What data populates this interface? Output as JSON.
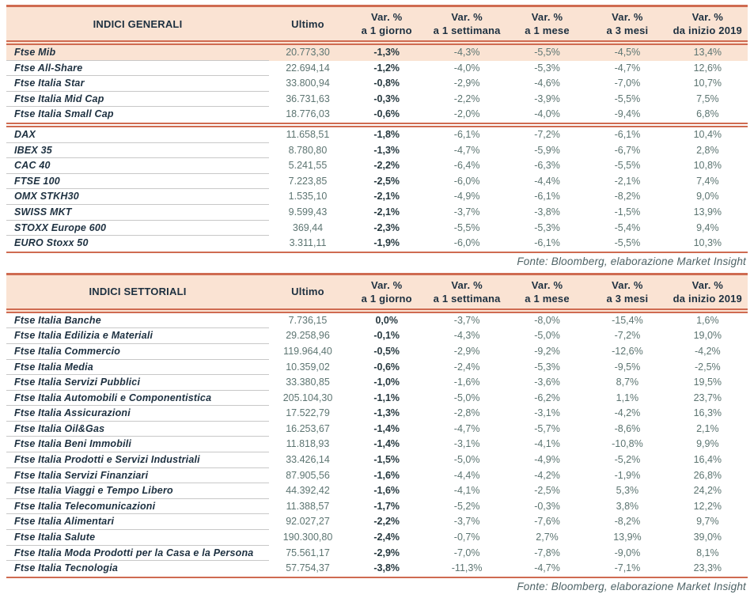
{
  "source_note": "Fonte: Bloomberg, elaborazione Market Insight",
  "columns": {
    "ultimo": "Ultimo",
    "var_label": "Var. %",
    "periods": [
      "a 1 giorno",
      "a 1 settimana",
      "a 1 mese",
      "a 3 mesi",
      "da inizio 2019"
    ]
  },
  "colors": {
    "accent_line": "#cf6b51",
    "header_bg": "#fae3d3",
    "dark_text": "#1d3040",
    "value_text": "#5d7572"
  },
  "tables": [
    {
      "title": "INDICI GENERALI",
      "groups": [
        {
          "rows": [
            {
              "name": "Ftse Mib",
              "ultimo": "20.773,30",
              "values": [
                "-1,3%",
                "-4,3%",
                "-5,5%",
                "-4,5%",
                "13,4%"
              ],
              "highlight": true
            },
            {
              "name": "Ftse All-Share",
              "ultimo": "22.694,14",
              "values": [
                "-1,2%",
                "-4,0%",
                "-5,3%",
                "-4,7%",
                "12,6%"
              ]
            },
            {
              "name": "Ftse Italia Star",
              "ultimo": "33.800,94",
              "values": [
                "-0,8%",
                "-2,9%",
                "-4,6%",
                "-7,0%",
                "10,7%"
              ]
            },
            {
              "name": "Ftse Italia Mid Cap",
              "ultimo": "36.731,63",
              "values": [
                "-0,3%",
                "-2,2%",
                "-3,9%",
                "-5,5%",
                "7,5%"
              ]
            },
            {
              "name": "Ftse Italia Small Cap",
              "ultimo": "18.776,03",
              "values": [
                "-0,6%",
                "-2,0%",
                "-4,0%",
                "-9,4%",
                "6,8%"
              ]
            }
          ]
        },
        {
          "rows": [
            {
              "name": "DAX",
              "ultimo": "11.658,51",
              "values": [
                "-1,8%",
                "-6,1%",
                "-7,2%",
                "-6,1%",
                "10,4%"
              ]
            },
            {
              "name": "IBEX 35",
              "ultimo": "8.780,80",
              "values": [
                "-1,3%",
                "-4,7%",
                "-5,9%",
                "-6,7%",
                "2,8%"
              ]
            },
            {
              "name": "CAC 40",
              "ultimo": "5.241,55",
              "values": [
                "-2,2%",
                "-6,4%",
                "-6,3%",
                "-5,5%",
                "10,8%"
              ]
            },
            {
              "name": "FTSE 100",
              "ultimo": "7.223,85",
              "values": [
                "-2,5%",
                "-6,0%",
                "-4,4%",
                "-2,1%",
                "7,4%"
              ]
            },
            {
              "name": "OMX STKH30",
              "ultimo": "1.535,10",
              "values": [
                "-2,1%",
                "-4,9%",
                "-6,1%",
                "-8,2%",
                "9,0%"
              ]
            },
            {
              "name": "SWISS MKT",
              "ultimo": "9.599,43",
              "values": [
                "-2,1%",
                "-3,7%",
                "-3,8%",
                "-1,5%",
                "13,9%"
              ]
            },
            {
              "name": "STOXX Europe 600",
              "ultimo": "369,44",
              "values": [
                "-2,3%",
                "-5,5%",
                "-5,3%",
                "-5,4%",
                "9,4%"
              ]
            },
            {
              "name": "EURO Stoxx 50",
              "ultimo": "3.311,11",
              "values": [
                "-1,9%",
                "-6,0%",
                "-6,1%",
                "-5,5%",
                "10,3%"
              ]
            }
          ]
        }
      ]
    },
    {
      "title": "INDICI SETTORIALI",
      "groups": [
        {
          "rows": [
            {
              "name": "Ftse Italia Banche",
              "ultimo": "7.736,15",
              "values": [
                "0,0%",
                "-3,7%",
                "-8,0%",
                "-15,4%",
                "1,6%"
              ]
            },
            {
              "name": "Ftse Italia Edilizia e Materiali",
              "ultimo": "29.258,96",
              "values": [
                "-0,1%",
                "-4,3%",
                "-5,0%",
                "-7,2%",
                "19,0%"
              ]
            },
            {
              "name": "Ftse Italia Commercio",
              "ultimo": "119.964,40",
              "values": [
                "-0,5%",
                "-2,9%",
                "-9,2%",
                "-12,6%",
                "-4,2%"
              ]
            },
            {
              "name": "Ftse Italia Media",
              "ultimo": "10.359,02",
              "values": [
                "-0,6%",
                "-2,4%",
                "-5,3%",
                "-9,5%",
                "-2,5%"
              ]
            },
            {
              "name": "Ftse Italia Servizi Pubblici",
              "ultimo": "33.380,85",
              "values": [
                "-1,0%",
                "-1,6%",
                "-3,6%",
                "8,7%",
                "19,5%"
              ]
            },
            {
              "name": "Ftse Italia Automobili e Componentistica",
              "ultimo": "205.104,30",
              "values": [
                "-1,1%",
                "-5,0%",
                "-6,2%",
                "1,1%",
                "23,7%"
              ]
            },
            {
              "name": "Ftse Italia Assicurazioni",
              "ultimo": "17.522,79",
              "values": [
                "-1,3%",
                "-2,8%",
                "-3,1%",
                "-4,2%",
                "16,3%"
              ]
            },
            {
              "name": "Ftse Italia Oil&Gas",
              "ultimo": "16.253,67",
              "values": [
                "-1,4%",
                "-4,7%",
                "-5,7%",
                "-8,6%",
                "2,1%"
              ]
            },
            {
              "name": "Ftse Italia Beni Immobili",
              "ultimo": "11.818,93",
              "values": [
                "-1,4%",
                "-3,1%",
                "-4,1%",
                "-10,8%",
                "9,9%"
              ]
            },
            {
              "name": "Ftse Italia Prodotti e Servizi Industriali",
              "ultimo": "33.426,14",
              "values": [
                "-1,5%",
                "-5,0%",
                "-4,9%",
                "-5,2%",
                "16,4%"
              ]
            },
            {
              "name": "Ftse Italia Servizi Finanziari",
              "ultimo": "87.905,56",
              "values": [
                "-1,6%",
                "-4,4%",
                "-4,2%",
                "-1,9%",
                "26,8%"
              ]
            },
            {
              "name": "Ftse Italia Viaggi e Tempo Libero",
              "ultimo": "44.392,42",
              "values": [
                "-1,6%",
                "-4,1%",
                "-2,5%",
                "5,3%",
                "24,2%"
              ]
            },
            {
              "name": "Ftse Italia Telecomunicazioni",
              "ultimo": "11.388,57",
              "values": [
                "-1,7%",
                "-5,2%",
                "-0,3%",
                "3,8%",
                "12,2%"
              ]
            },
            {
              "name": "Ftse Italia Alimentari",
              "ultimo": "92.027,27",
              "values": [
                "-2,2%",
                "-3,7%",
                "-7,6%",
                "-8,2%",
                "9,7%"
              ]
            },
            {
              "name": "Ftse Italia Salute",
              "ultimo": "190.300,80",
              "values": [
                "-2,4%",
                "-0,7%",
                "2,7%",
                "13,9%",
                "39,0%"
              ]
            },
            {
              "name": "Ftse Italia Moda Prodotti per la Casa e la Persona",
              "ultimo": "75.561,17",
              "values": [
                "-2,9%",
                "-7,0%",
                "-7,8%",
                "-9,0%",
                "8,1%"
              ]
            },
            {
              "name": "Ftse Italia Tecnologia",
              "ultimo": "57.754,37",
              "values": [
                "-3,8%",
                "-11,3%",
                "-4,7%",
                "-7,1%",
                "23,3%"
              ]
            }
          ]
        }
      ]
    }
  ]
}
